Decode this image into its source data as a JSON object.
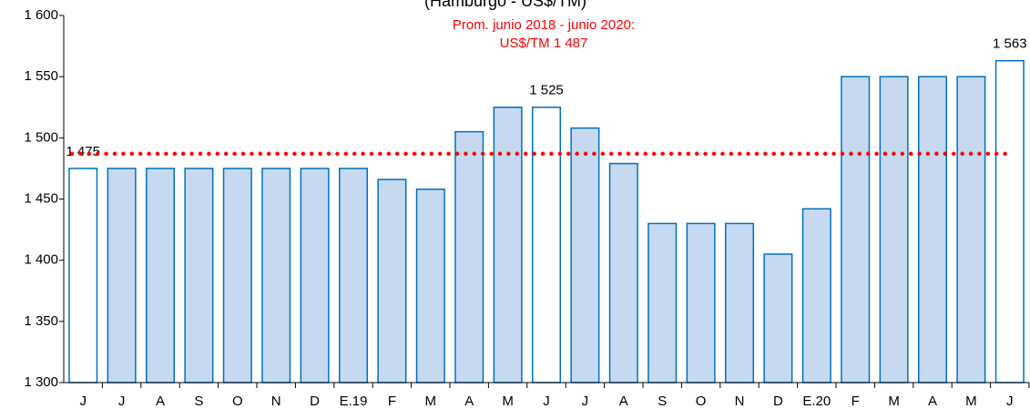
{
  "chart_data": {
    "type": "bar",
    "subtitle": "(Hamburgo - US$/TM)",
    "categories": [
      "J",
      "J",
      "A",
      "S",
      "O",
      "N",
      "D",
      "E.19",
      "F",
      "M",
      "A",
      "M",
      "J",
      "J",
      "A",
      "S",
      "O",
      "N",
      "D",
      "E.20",
      "F",
      "M",
      "A",
      "M",
      "J"
    ],
    "values": [
      1475,
      1475,
      1475,
      1475,
      1475,
      1475,
      1475,
      1475,
      1466,
      1458,
      1505,
      1525,
      1525,
      1508,
      1479,
      1430,
      1430,
      1430,
      1405,
      1442,
      1550,
      1550,
      1550,
      1550,
      1563
    ],
    "value_labels": [
      "1 475",
      null,
      null,
      null,
      null,
      null,
      null,
      null,
      null,
      null,
      null,
      null,
      "1 525",
      null,
      null,
      null,
      null,
      null,
      null,
      null,
      null,
      null,
      null,
      null,
      "1 563"
    ],
    "fills": [
      "#ffffff",
      "#c6d9f1",
      "#c6d9f1",
      "#c6d9f1",
      "#c6d9f1",
      "#c6d9f1",
      "#c6d9f1",
      "#c6d9f1",
      "#c6d9f1",
      "#c6d9f1",
      "#c6d9f1",
      "#c6d9f1",
      "#ffffff",
      "#c6d9f1",
      "#c6d9f1",
      "#c6d9f1",
      "#c6d9f1",
      "#c6d9f1",
      "#c6d9f1",
      "#c6d9f1",
      "#c6d9f1",
      "#c6d9f1",
      "#c6d9f1",
      "#c6d9f1",
      "#ffffff"
    ],
    "color": "#0070c0",
    "ylim": [
      1300,
      1600
    ],
    "yticks": [
      {
        "value": 1300,
        "label": "1 300"
      },
      {
        "value": 1350,
        "label": "1 350"
      },
      {
        "value": 1400,
        "label": "1 400"
      },
      {
        "value": 1450,
        "label": "1 450"
      },
      {
        "value": 1500,
        "label": "1 500"
      },
      {
        "value": 1550,
        "label": "1 550"
      },
      {
        "value": 1600,
        "label": "1 600"
      }
    ],
    "average": {
      "value": 1487,
      "color": "#ff0000",
      "label_lines": [
        "Prom. junio 2018 - junio 2020:",
        "US$/TM 1 487"
      ]
    }
  }
}
